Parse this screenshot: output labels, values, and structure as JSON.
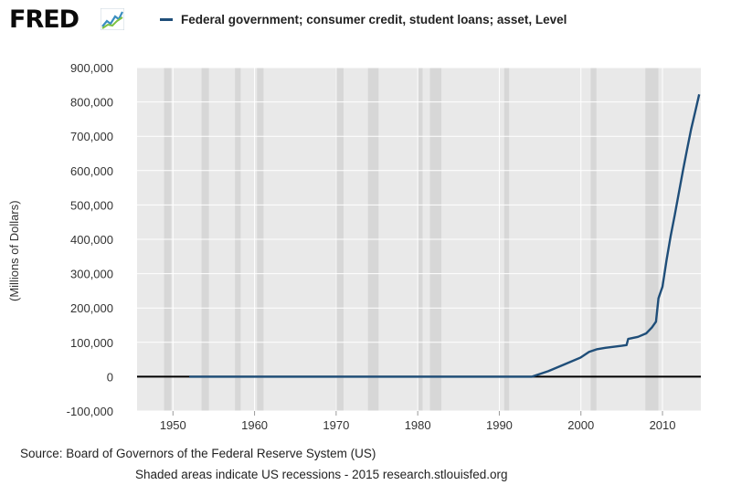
{
  "brand": {
    "logo_text": "FRED"
  },
  "colors": {
    "series": "#1f4e79",
    "recession": "#d7d7d7",
    "plot_bg": "#ffffff",
    "grid": "#ffffff",
    "frame_bg": "#e9e9e9",
    "zero_line": "#000000"
  },
  "footer": {
    "source": "Source: Board of Governors of the Federal Reserve System (US)",
    "note": "Shaded areas indicate US recessions - 2015 research.stlouisfed.org"
  },
  "chart_data": {
    "type": "line",
    "title": "",
    "xlabel": "",
    "ylabel": "(Millions of Dollars)",
    "xlim": [
      1945.6,
      2014.7
    ],
    "ylim": [
      -100000,
      900000
    ],
    "x_ticks": [
      1950,
      1960,
      1970,
      1980,
      1990,
      2000,
      2010
    ],
    "x_tick_labels": [
      "1950",
      "1960",
      "1970",
      "1980",
      "1990",
      "2000",
      "2010"
    ],
    "y_ticks": [
      -100000,
      0,
      100000,
      200000,
      300000,
      400000,
      500000,
      600000,
      700000,
      800000,
      900000
    ],
    "y_tick_labels": [
      "-100,000",
      "0",
      "100,000",
      "200,000",
      "300,000",
      "400,000",
      "500,000",
      "600,000",
      "700,000",
      "800,000",
      "900,000"
    ],
    "grid": true,
    "legend_position": "top",
    "series": [
      {
        "name": "Federal government; consumer credit, student loans; asset, Level",
        "x": [
          1952.0,
          1994.0,
          1994.5,
          1996,
          1998,
          2000,
          2001,
          2002,
          2003,
          2004,
          2005,
          2005.6,
          2005.8,
          2006,
          2007,
          2008,
          2008.7,
          2009.2,
          2009.5,
          2010,
          2010.5,
          2011,
          2011.5,
          2012,
          2012.5,
          2013,
          2013.5,
          2014,
          2014.5
        ],
        "y": [
          0,
          0,
          4000,
          16000,
          36000,
          56000,
          72000,
          80000,
          84000,
          87000,
          90000,
          92000,
          110000,
          111000,
          116000,
          126000,
          143000,
          160000,
          228000,
          262000,
          340000,
          410000,
          470000,
          535000,
          600000,
          660000,
          720000,
          770000,
          822000
        ]
      }
    ],
    "recessions": [
      [
        1948.9,
        1949.8
      ],
      [
        1953.5,
        1954.4
      ],
      [
        1957.6,
        1958.3
      ],
      [
        1960.3,
        1961.1
      ],
      [
        1969.9,
        1970.9
      ],
      [
        1973.9,
        1975.2
      ],
      [
        1980.0,
        1980.6
      ],
      [
        1981.5,
        1982.9
      ],
      [
        1990.6,
        1991.2
      ],
      [
        2001.2,
        2001.9
      ],
      [
        2007.9,
        2009.5
      ]
    ]
  }
}
